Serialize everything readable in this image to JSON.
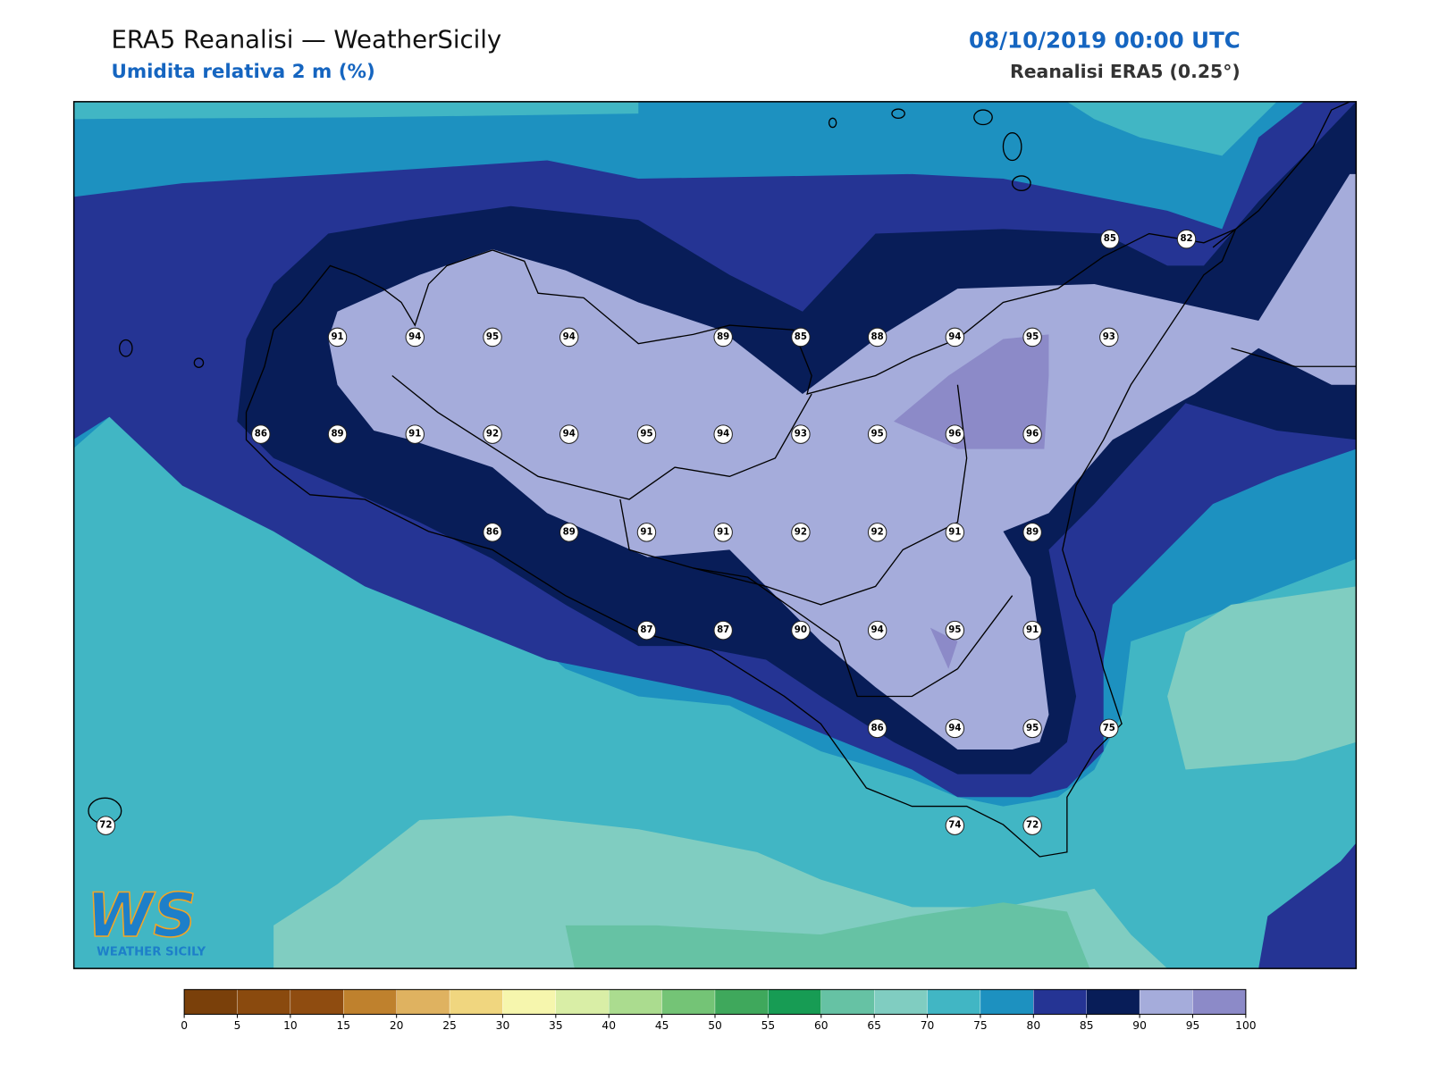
{
  "header": {
    "title": "ERA5 Reanalisi — WeatherSicily",
    "subtitle": "Umidita relativa 2 m (%)",
    "datetime": "08/10/2019 00:00 UTC",
    "source": "Reanalisi ERA5 (0.25°)"
  },
  "logo": {
    "mark": "WS",
    "tagline": "WEATHER SICILY"
  },
  "stations": [
    85,
    82,
    91,
    94,
    95,
    94,
    89,
    85,
    88,
    94,
    95,
    93,
    86,
    89,
    91,
    92,
    94,
    95,
    94,
    93,
    95,
    96,
    96,
    86,
    89,
    91,
    91,
    92,
    92,
    91,
    89,
    87,
    87,
    90,
    94,
    95,
    91,
    86,
    94,
    95,
    75,
    72,
    74,
    72
  ],
  "colorbar": {
    "ticks": [
      0,
      5,
      10,
      15,
      20,
      25,
      30,
      35,
      40,
      45,
      50,
      55,
      60,
      65,
      70,
      75,
      80,
      85,
      90,
      95,
      100
    ],
    "colors": [
      "#7a400a",
      "#8a4a0e",
      "#8f4c10",
      "#bf812d",
      "#dfb260",
      "#f0d67f",
      "#f6f6ad",
      "#d9eea6",
      "#abdc8f",
      "#74c476",
      "#3fa85c",
      "#179c54",
      "#66c2a4",
      "#80cdc1",
      "#41b6c4",
      "#1d91c0",
      "#253494",
      "#081d58",
      "#a5acdb",
      "#8c8ac8"
    ]
  }
}
